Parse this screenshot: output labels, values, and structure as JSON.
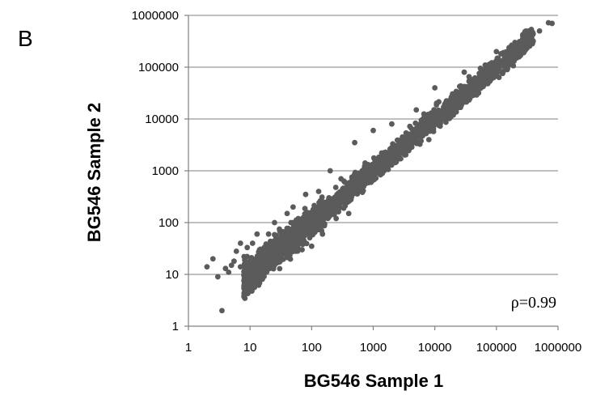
{
  "panel_label": "B",
  "chart_data": {
    "type": "scatter",
    "xlabel": "BG546 Sample 1",
    "ylabel": "BG546 Sample 2",
    "xscale": "log",
    "yscale": "log",
    "xlim": [
      1,
      1000000
    ],
    "ylim": [
      1,
      1000000
    ],
    "x_ticks": [
      "1",
      "10",
      "100",
      "1000",
      "10000",
      "100000",
      "1000000"
    ],
    "y_ticks": [
      "1",
      "10",
      "100",
      "1000",
      "10000",
      "100000",
      "1000000"
    ],
    "grid": "horizontal",
    "annotation": "ρ=0.99",
    "point_color": "#5b5b5b",
    "points": [
      [
        2,
        14
      ],
      [
        2.5,
        20
      ],
      [
        3,
        9
      ],
      [
        3.5,
        2
      ],
      [
        4,
        13
      ],
      [
        4.5,
        11
      ],
      [
        5,
        15
      ],
      [
        5.5,
        18
      ],
      [
        6,
        28
      ],
      [
        7,
        14
      ],
      [
        7,
        40
      ],
      [
        8,
        22
      ],
      [
        9,
        33
      ],
      [
        10,
        5
      ],
      [
        10,
        18
      ],
      [
        11,
        40
      ],
      [
        12,
        7
      ],
      [
        13,
        60
      ],
      [
        15,
        10
      ],
      [
        18,
        25
      ],
      [
        20,
        60
      ],
      [
        25,
        100
      ],
      [
        30,
        75
      ],
      [
        40,
        150
      ],
      [
        50,
        200
      ],
      [
        60,
        40
      ],
      [
        70,
        30
      ],
      [
        80,
        350
      ],
      [
        90,
        60
      ],
      [
        100,
        35
      ],
      [
        130,
        400
      ],
      [
        150,
        60
      ],
      [
        200,
        1000
      ],
      [
        250,
        120
      ],
      [
        300,
        700
      ],
      [
        400,
        150
      ],
      [
        500,
        3500
      ],
      [
        700,
        500
      ],
      [
        1000,
        6000
      ],
      [
        1500,
        1000
      ],
      [
        2000,
        8000
      ],
      [
        3000,
        2500
      ],
      [
        5000,
        15000
      ],
      [
        8000,
        4000
      ],
      [
        10000,
        40000
      ],
      [
        20000,
        12000
      ],
      [
        30000,
        80000
      ],
      [
        50000,
        40000
      ],
      [
        100000,
        200000
      ],
      [
        150000,
        90000
      ],
      [
        200000,
        300000
      ],
      [
        300000,
        250000
      ],
      [
        500000,
        500000
      ],
      [
        700000,
        720000
      ],
      [
        800000,
        700000
      ]
    ]
  }
}
